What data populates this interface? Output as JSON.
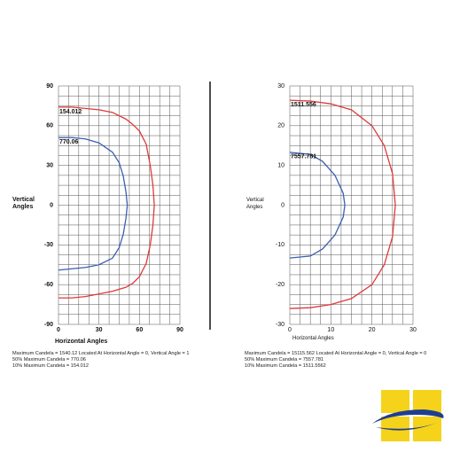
{
  "chart_data": [
    {
      "type": "line",
      "y_label": "Vertical Angles",
      "x_label": "Horizontal Angles",
      "xlim": [
        0,
        90
      ],
      "xticks": [
        0,
        30,
        60,
        90
      ],
      "ylim": [
        -90,
        90
      ],
      "yticks": [
        90,
        60,
        30,
        0,
        -30,
        -60,
        -90
      ],
      "grid": true,
      "series": [
        {
          "color": "#e0393b",
          "x": [
            0,
            10,
            20,
            30,
            40,
            50,
            55,
            60,
            65,
            68,
            70,
            71,
            70,
            68,
            65,
            60,
            55,
            50,
            40,
            30,
            20,
            10,
            0
          ],
          "values": [
            74,
            74,
            73,
            72,
            70,
            65,
            61,
            56,
            46,
            30,
            15,
            0,
            -15,
            -30,
            -44,
            -54,
            -59,
            -62,
            -65,
            -67,
            -69,
            -70,
            -70
          ]
        },
        {
          "color": "#3a5fb0",
          "x": [
            0,
            10,
            20,
            30,
            40,
            45,
            48,
            50,
            51,
            50,
            48,
            45,
            40,
            30,
            20,
            10,
            0
          ],
          "values": [
            51,
            51,
            50,
            47,
            40,
            32,
            22,
            10,
            0,
            -10,
            -22,
            -32,
            -40,
            -45,
            -47,
            -48,
            -49
          ]
        }
      ],
      "annotations": [
        "154.012",
        "770.06"
      ],
      "notes": [
        "Maximum Candela = 1540.12   Located At Horizontal Angle = 0, Vertical Angle = 1",
        "50% Maximum Candela = 770.06",
        "10% Maximum Candela = 154.012"
      ]
    },
    {
      "type": "line",
      "y_label": "Vertical Angles",
      "x_label": "Horizontal Angles",
      "xlim": [
        0,
        30
      ],
      "xticks": [
        0,
        10,
        20,
        30
      ],
      "ylim": [
        -30,
        30
      ],
      "yticks": [
        30,
        20,
        10,
        0,
        -10,
        -20,
        -30
      ],
      "grid": true,
      "series": [
        {
          "color": "#e0393b",
          "x": [
            0,
            5,
            10,
            15,
            20,
            23,
            25,
            25.7,
            25,
            23,
            20,
            15,
            10,
            5,
            0
          ],
          "values": [
            26.4,
            26.2,
            25.5,
            24,
            20,
            15,
            8,
            0,
            -8,
            -15,
            -20,
            -23.5,
            -25,
            -25.8,
            -26
          ]
        },
        {
          "color": "#3a5fb0",
          "x": [
            0,
            5,
            8,
            11,
            13,
            13.4,
            13,
            11,
            8,
            5,
            0
          ],
          "values": [
            13.3,
            12.8,
            11,
            7.5,
            3,
            0,
            -3,
            -7.5,
            -11,
            -12.8,
            -13.3
          ]
        }
      ],
      "annotations": [
        "1511.556",
        "7557.781"
      ],
      "notes": [
        "Maximum Candela = 15115.562  Located At Horizontal Angle = 0, Vertical Angle = 0",
        "50% Maximum Candela = 7557.781",
        "10% Maximum Candela = 1511.5562"
      ]
    }
  ]
}
